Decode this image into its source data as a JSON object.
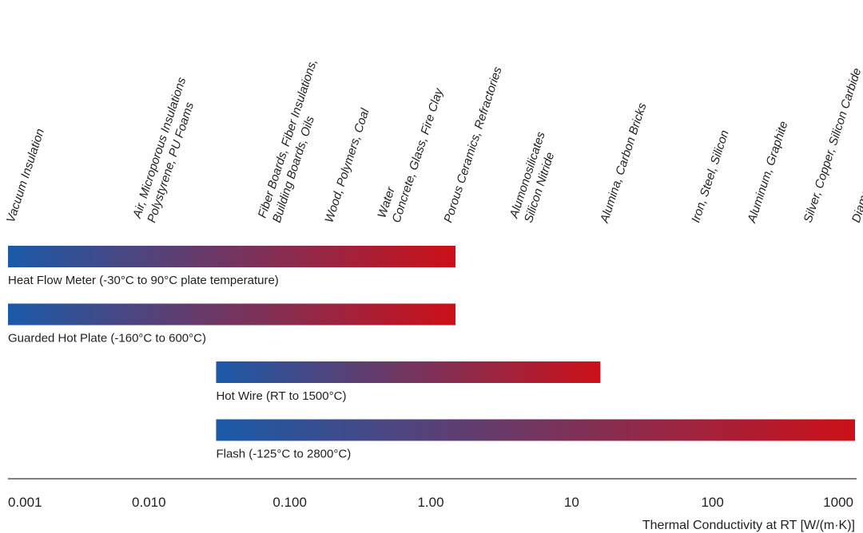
{
  "chart_data": {
    "type": "bar",
    "orientation": "horizontal-range",
    "scale": "log",
    "xlim": [
      0.001,
      1000
    ],
    "xlabel": "Thermal Conductivity at RT [W/(m·K)]",
    "tick_labels": [
      "0.001",
      "0.010",
      "0.100",
      "1.00",
      "10",
      "100",
      "1000"
    ],
    "tick_values": [
      0.001,
      0.01,
      0.1,
      1,
      10,
      100,
      1000
    ],
    "materials": [
      {
        "x": 0.0011,
        "lines": [
          "Vacuum Insulation"
        ]
      },
      {
        "x": 0.011,
        "lines": [
          "Air, Microporous Insulations",
          "Polystyrene, PU Foams"
        ]
      },
      {
        "x": 0.085,
        "lines": [
          "Fiber Boards, Fiber Insulations,",
          "Building Boards, Oils"
        ]
      },
      {
        "x": 0.2,
        "lines": [
          "Wood, Polymers, Coal"
        ]
      },
      {
        "x": 0.6,
        "lines": [
          "Water",
          "Concrete, Glass, Fire Clay"
        ]
      },
      {
        "x": 1.4,
        "lines": [
          "Porous Ceramics, Refractories"
        ]
      },
      {
        "x": 5.2,
        "lines": [
          "Alumonosilicates",
          "Silicon Nitride"
        ]
      },
      {
        "x": 18,
        "lines": [
          "Alumina, Carbon Bricks"
        ]
      },
      {
        "x": 80,
        "lines": [
          "Iron, Steel, Silicon"
        ]
      },
      {
        "x": 200,
        "lines": [
          "Aluminum, Graphite"
        ]
      },
      {
        "x": 500,
        "lines": [
          "Silver, Copper, Silicon Carbide"
        ]
      },
      {
        "x": 1100,
        "lines": [
          "Diamond"
        ]
      }
    ],
    "series": [
      {
        "label": "Heat Flow Meter (-30°C to 90°C plate temperature)",
        "start": 0.001,
        "end": 1.5
      },
      {
        "label": "Guarded Hot Plate (-160°C to 600°C)",
        "start": 0.001,
        "end": 1.5
      },
      {
        "label": "Hot Wire (RT to 1500°C)",
        "start": 0.03,
        "end": 16
      },
      {
        "label": "Flash (-125°C to 2800°C)",
        "start": 0.03,
        "end": 1500
      }
    ],
    "colors": {
      "start": "#1a5aa8",
      "end": "#cc1018",
      "axis": "#808080",
      "text": "#1f1f1f"
    }
  }
}
